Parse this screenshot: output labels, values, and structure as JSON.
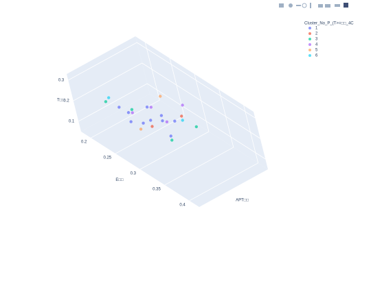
{
  "chart_data": {
    "type": "scatter3d",
    "legend_title": "Cluster_No_P_(T>=□□_4C",
    "x_label": "APT□□",
    "y_label": "E□□",
    "z_label": "T□□",
    "xlim": [
      0,
      1
    ],
    "ylim": [
      0.18,
      0.42
    ],
    "zlim": [
      0.05,
      0.33
    ],
    "yticks": [
      0.2,
      0.25,
      0.3,
      0.35,
      0.4
    ],
    "zticks": [
      0.1,
      0.2,
      0.3
    ],
    "legend_position": "top-right",
    "series": [
      {
        "name": "1",
        "color": "#636efa",
        "x": [
          0.3,
          0.35,
          0.4,
          0.45,
          0.5,
          0.55,
          0.3,
          0.6,
          0.65,
          0.5
        ],
        "y": [
          0.25,
          0.24,
          0.26,
          0.27,
          0.3,
          0.28,
          0.23,
          0.27,
          0.29,
          0.26
        ],
        "z": [
          0.15,
          0.17,
          0.14,
          0.16,
          0.12,
          0.18,
          0.19,
          0.13,
          0.15,
          0.2
        ]
      },
      {
        "name": "2",
        "color": "#EF553B",
        "x": [
          0.45,
          0.7
        ],
        "y": [
          0.27,
          0.3
        ],
        "z": [
          0.13,
          0.18
        ]
      },
      {
        "name": "3",
        "color": "#00cc96",
        "x": [
          0.2,
          0.5,
          0.75,
          0.35
        ],
        "y": [
          0.22,
          0.3,
          0.32,
          0.25
        ],
        "z": [
          0.22,
          0.1,
          0.15,
          0.2
        ]
      },
      {
        "name": "4",
        "color": "#ab63fa",
        "x": [
          0.4,
          0.55,
          0.6,
          0.8
        ],
        "y": [
          0.24,
          0.26,
          0.28,
          0.29
        ],
        "z": [
          0.16,
          0.19,
          0.14,
          0.2
        ]
      },
      {
        "name": "5",
        "color": "#FFA15A",
        "x": [
          0.35,
          0.65
        ],
        "y": [
          0.26,
          0.27
        ],
        "z": [
          0.12,
          0.24
        ]
      },
      {
        "name": "6",
        "color": "#19d3f3",
        "x": [
          0.25,
          0.7
        ],
        "y": [
          0.22,
          0.3
        ],
        "z": [
          0.23,
          0.16
        ]
      }
    ]
  }
}
